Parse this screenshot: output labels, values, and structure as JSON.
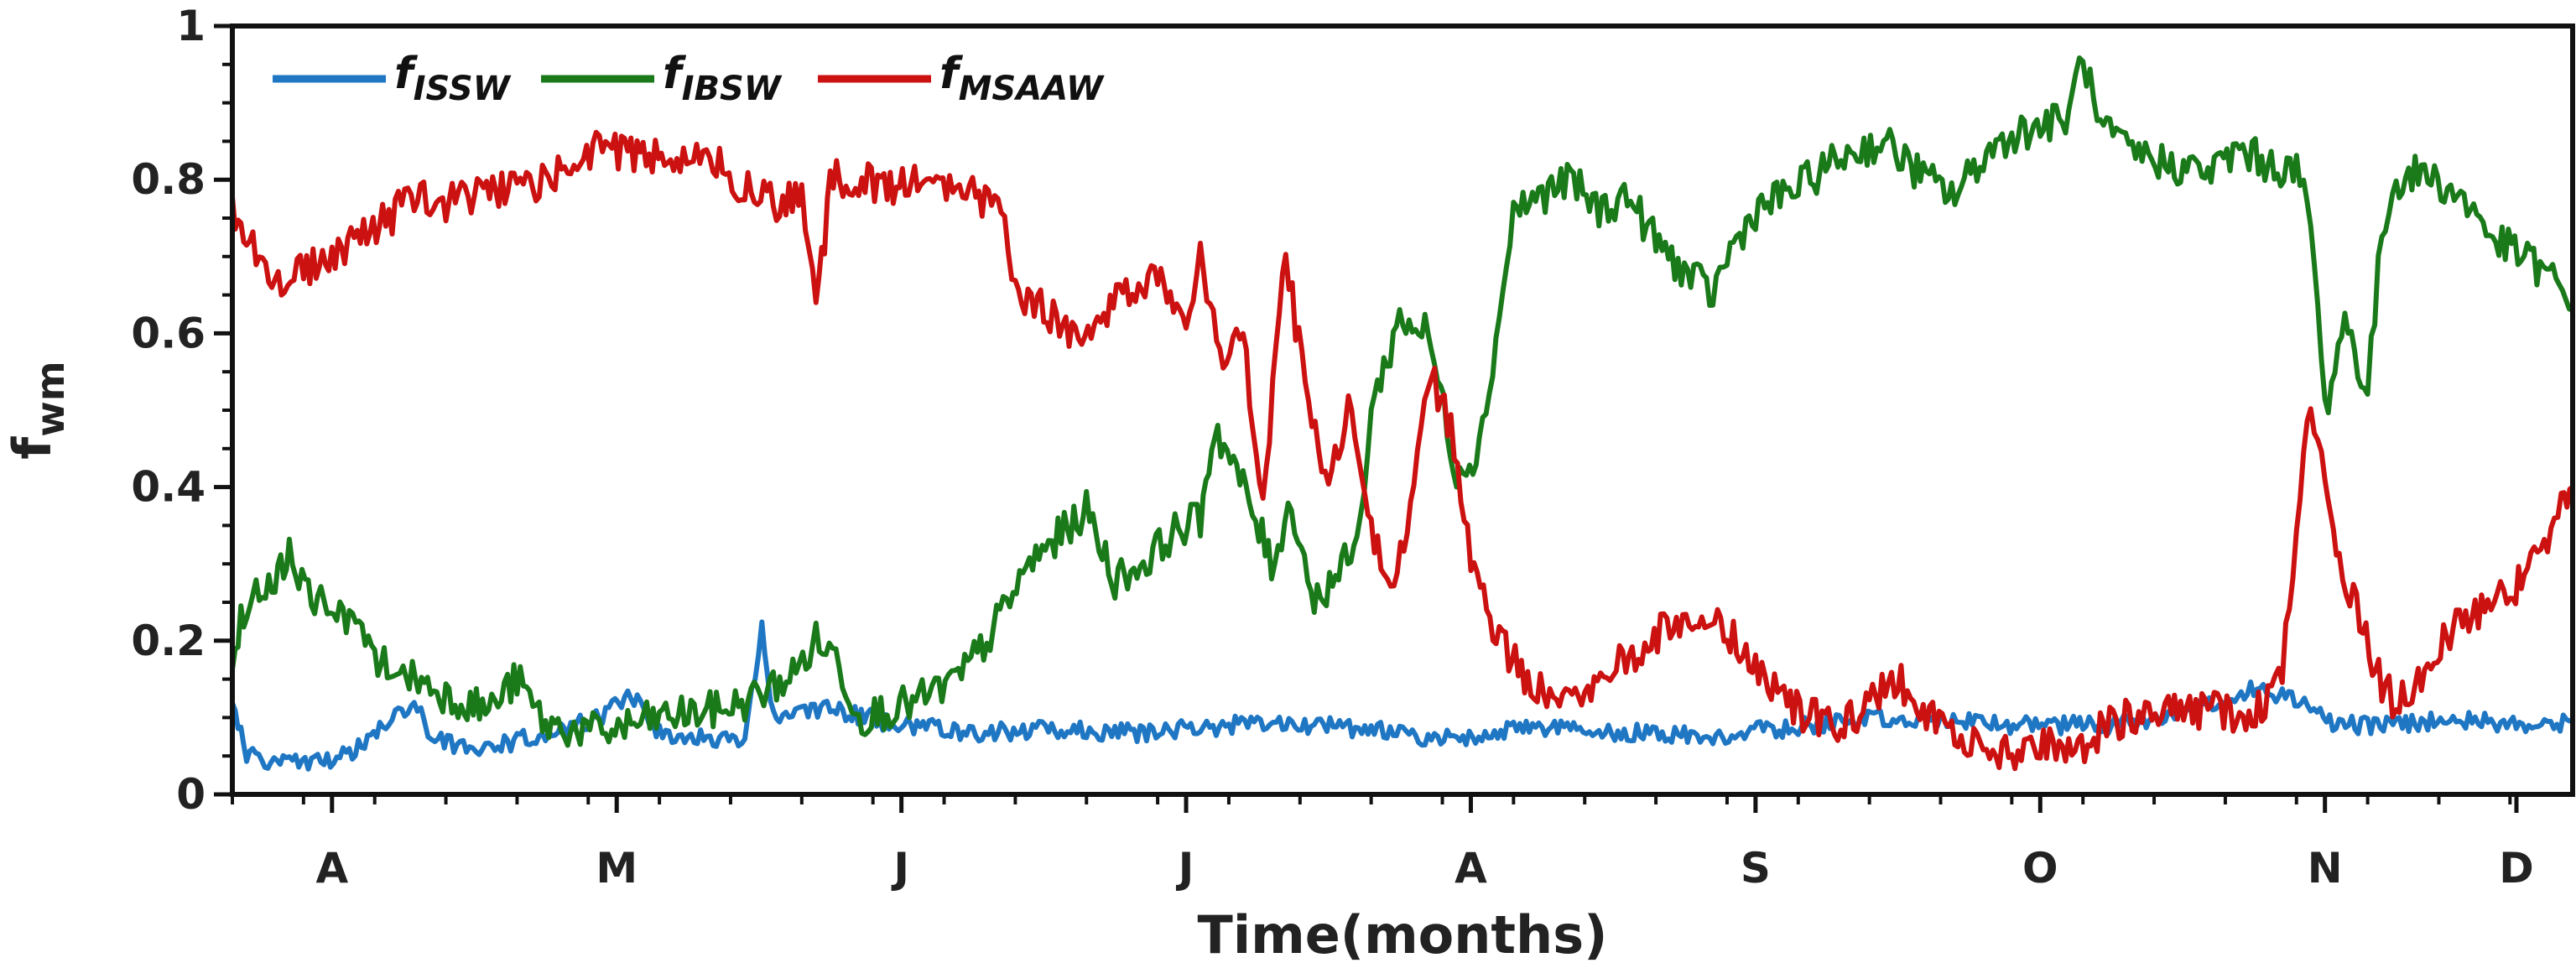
{
  "chart_data": {
    "type": "line",
    "xlabel": "Time(months)",
    "ylabel": "f",
    "ylabel_sub": "wm",
    "ylim": [
      0,
      1
    ],
    "xlim": [
      0,
      8.22
    ],
    "x_ticks": [
      {
        "label": "A",
        "pos": 0.35
      },
      {
        "label": "M",
        "pos": 1.35
      },
      {
        "label": "J",
        "pos": 2.35
      },
      {
        "label": "J",
        "pos": 3.35
      },
      {
        "label": "A",
        "pos": 4.35
      },
      {
        "label": "S",
        "pos": 5.35
      },
      {
        "label": "O",
        "pos": 6.35
      },
      {
        "label": "N",
        "pos": 7.35
      },
      {
        "label": "D",
        "pos": 8.35
      }
    ],
    "y_ticks": [
      {
        "label": "0",
        "value": 0
      },
      {
        "label": "0.2",
        "value": 0.2
      },
      {
        "label": "0.4",
        "value": 0.4
      },
      {
        "label": "0.6",
        "value": 0.6
      },
      {
        "label": "0.8",
        "value": 0.8
      },
      {
        "label": "1",
        "value": 1
      }
    ],
    "legend_position": "top-left",
    "series": [
      {
        "name": "f",
        "sub": "ISSW",
        "color": "#1f77c4",
        "points": [
          [
            0,
            0.12
          ],
          [
            0.05,
            0.05
          ],
          [
            0.2,
            0.04
          ],
          [
            0.4,
            0.05
          ],
          [
            0.55,
            0.1
          ],
          [
            0.65,
            0.12
          ],
          [
            0.7,
            0.07
          ],
          [
            0.9,
            0.06
          ],
          [
            1.1,
            0.08
          ],
          [
            1.3,
            0.1
          ],
          [
            1.4,
            0.13
          ],
          [
            1.5,
            0.08
          ],
          [
            1.8,
            0.065
          ],
          [
            1.86,
            0.22
          ],
          [
            1.9,
            0.1
          ],
          [
            2.1,
            0.11
          ],
          [
            2.35,
            0.09
          ],
          [
            2.6,
            0.08
          ],
          [
            2.9,
            0.085
          ],
          [
            3.2,
            0.08
          ],
          [
            3.5,
            0.09
          ],
          [
            3.8,
            0.09
          ],
          [
            4.0,
            0.085
          ],
          [
            4.2,
            0.07
          ],
          [
            4.4,
            0.08
          ],
          [
            4.6,
            0.085
          ],
          [
            4.9,
            0.08
          ],
          [
            5.2,
            0.075
          ],
          [
            5.4,
            0.085
          ],
          [
            5.6,
            0.09
          ],
          [
            5.8,
            0.1
          ],
          [
            6.0,
            0.1
          ],
          [
            6.2,
            0.09
          ],
          [
            6.4,
            0.09
          ],
          [
            6.6,
            0.09
          ],
          [
            6.8,
            0.1
          ],
          [
            7.0,
            0.12
          ],
          [
            7.1,
            0.14
          ],
          [
            7.2,
            0.13
          ],
          [
            7.4,
            0.09
          ],
          [
            7.6,
            0.09
          ],
          [
            7.8,
            0.1
          ],
          [
            8.0,
            0.09
          ],
          [
            8.22,
            0.095
          ]
        ]
      },
      {
        "name": "f",
        "sub": "IBSW",
        "color": "#1a7a1a",
        "points": [
          [
            0,
            0.18
          ],
          [
            0.05,
            0.25
          ],
          [
            0.15,
            0.28
          ],
          [
            0.2,
            0.31
          ],
          [
            0.3,
            0.25
          ],
          [
            0.4,
            0.22
          ],
          [
            0.5,
            0.18
          ],
          [
            0.6,
            0.16
          ],
          [
            0.75,
            0.13
          ],
          [
            0.9,
            0.11
          ],
          [
            1.0,
            0.15
          ],
          [
            1.1,
            0.09
          ],
          [
            1.3,
            0.08
          ],
          [
            1.5,
            0.1
          ],
          [
            1.7,
            0.11
          ],
          [
            1.8,
            0.12
          ],
          [
            1.9,
            0.14
          ],
          [
            1.98,
            0.16
          ],
          [
            2.05,
            0.2
          ],
          [
            2.12,
            0.18
          ],
          [
            2.2,
            0.1
          ],
          [
            2.4,
            0.12
          ],
          [
            2.55,
            0.15
          ],
          [
            2.65,
            0.2
          ],
          [
            2.8,
            0.3
          ],
          [
            3.0,
            0.37
          ],
          [
            3.1,
            0.28
          ],
          [
            3.2,
            0.3
          ],
          [
            3.3,
            0.34
          ],
          [
            3.4,
            0.36
          ],
          [
            3.45,
            0.48
          ],
          [
            3.55,
            0.4
          ],
          [
            3.65,
            0.3
          ],
          [
            3.72,
            0.38
          ],
          [
            3.8,
            0.25
          ],
          [
            3.95,
            0.32
          ],
          [
            4.0,
            0.5
          ],
          [
            4.1,
            0.62
          ],
          [
            4.2,
            0.6
          ],
          [
            4.3,
            0.42
          ],
          [
            4.38,
            0.45
          ],
          [
            4.45,
            0.62
          ],
          [
            4.5,
            0.76
          ],
          [
            4.6,
            0.78
          ],
          [
            4.7,
            0.8
          ],
          [
            4.8,
            0.76
          ],
          [
            4.9,
            0.78
          ],
          [
            5.0,
            0.72
          ],
          [
            5.1,
            0.68
          ],
          [
            5.2,
            0.65
          ],
          [
            5.25,
            0.7
          ],
          [
            5.35,
            0.76
          ],
          [
            5.5,
            0.79
          ],
          [
            5.65,
            0.83
          ],
          [
            5.8,
            0.85
          ],
          [
            5.95,
            0.8
          ],
          [
            6.05,
            0.78
          ],
          [
            6.15,
            0.83
          ],
          [
            6.25,
            0.86
          ],
          [
            6.35,
            0.87
          ],
          [
            6.45,
            0.88
          ],
          [
            6.5,
            0.97
          ],
          [
            6.55,
            0.87
          ],
          [
            6.65,
            0.84
          ],
          [
            6.8,
            0.82
          ],
          [
            6.95,
            0.81
          ],
          [
            7.05,
            0.84
          ],
          [
            7.15,
            0.82
          ],
          [
            7.25,
            0.81
          ],
          [
            7.3,
            0.75
          ],
          [
            7.35,
            0.5
          ],
          [
            7.42,
            0.62
          ],
          [
            7.5,
            0.52
          ],
          [
            7.55,
            0.73
          ],
          [
            7.6,
            0.8
          ],
          [
            7.7,
            0.81
          ],
          [
            7.85,
            0.77
          ],
          [
            7.95,
            0.72
          ],
          [
            8.05,
            0.7
          ],
          [
            8.15,
            0.67
          ],
          [
            8.22,
            0.63
          ]
        ]
      },
      {
        "name": "f",
        "sub": "MSAAW",
        "color": "#cc1111",
        "points": [
          [
            0,
            0.76
          ],
          [
            0.05,
            0.72
          ],
          [
            0.15,
            0.67
          ],
          [
            0.25,
            0.68
          ],
          [
            0.35,
            0.7
          ],
          [
            0.45,
            0.72
          ],
          [
            0.55,
            0.75
          ],
          [
            0.65,
            0.78
          ],
          [
            0.75,
            0.77
          ],
          [
            0.85,
            0.78
          ],
          [
            1.0,
            0.79
          ],
          [
            1.1,
            0.8
          ],
          [
            1.2,
            0.82
          ],
          [
            1.3,
            0.85
          ],
          [
            1.4,
            0.83
          ],
          [
            1.55,
            0.83
          ],
          [
            1.7,
            0.82
          ],
          [
            1.8,
            0.79
          ],
          [
            1.9,
            0.77
          ],
          [
            2.0,
            0.78
          ],
          [
            2.05,
            0.62
          ],
          [
            2.1,
            0.8
          ],
          [
            2.2,
            0.8
          ],
          [
            2.3,
            0.79
          ],
          [
            2.45,
            0.8
          ],
          [
            2.6,
            0.78
          ],
          [
            2.7,
            0.77
          ],
          [
            2.75,
            0.66
          ],
          [
            2.85,
            0.63
          ],
          [
            2.95,
            0.6
          ],
          [
            3.05,
            0.62
          ],
          [
            3.15,
            0.66
          ],
          [
            3.25,
            0.68
          ],
          [
            3.35,
            0.62
          ],
          [
            3.4,
            0.7
          ],
          [
            3.48,
            0.56
          ],
          [
            3.55,
            0.6
          ],
          [
            3.62,
            0.38
          ],
          [
            3.7,
            0.7
          ],
          [
            3.78,
            0.5
          ],
          [
            3.85,
            0.4
          ],
          [
            3.92,
            0.5
          ],
          [
            4.0,
            0.35
          ],
          [
            4.08,
            0.25
          ],
          [
            4.15,
            0.42
          ],
          [
            4.2,
            0.55
          ],
          [
            4.28,
            0.48
          ],
          [
            4.35,
            0.3
          ],
          [
            4.45,
            0.2
          ],
          [
            4.55,
            0.15
          ],
          [
            4.65,
            0.13
          ],
          [
            4.75,
            0.14
          ],
          [
            4.85,
            0.17
          ],
          [
            4.95,
            0.19
          ],
          [
            5.05,
            0.22
          ],
          [
            5.15,
            0.23
          ],
          [
            5.25,
            0.21
          ],
          [
            5.35,
            0.17
          ],
          [
            5.45,
            0.12
          ],
          [
            5.55,
            0.1
          ],
          [
            5.65,
            0.09
          ],
          [
            5.75,
            0.12
          ],
          [
            5.85,
            0.15
          ],
          [
            5.95,
            0.1
          ],
          [
            6.05,
            0.08
          ],
          [
            6.15,
            0.06
          ],
          [
            6.25,
            0.05
          ],
          [
            6.35,
            0.07
          ],
          [
            6.45,
            0.05
          ],
          [
            6.55,
            0.08
          ],
          [
            6.65,
            0.1
          ],
          [
            6.8,
            0.11
          ],
          [
            6.95,
            0.11
          ],
          [
            7.05,
            0.1
          ],
          [
            7.15,
            0.12
          ],
          [
            7.2,
            0.15
          ],
          [
            7.25,
            0.35
          ],
          [
            7.3,
            0.5
          ],
          [
            7.35,
            0.4
          ],
          [
            7.4,
            0.3
          ],
          [
            7.45,
            0.25
          ],
          [
            7.55,
            0.14
          ],
          [
            7.6,
            0.12
          ],
          [
            7.7,
            0.16
          ],
          [
            7.8,
            0.22
          ],
          [
            7.9,
            0.24
          ],
          [
            8.0,
            0.26
          ],
          [
            8.05,
            0.29
          ],
          [
            8.12,
            0.32
          ],
          [
            8.18,
            0.38
          ],
          [
            8.22,
            0.4
          ]
        ]
      }
    ]
  }
}
